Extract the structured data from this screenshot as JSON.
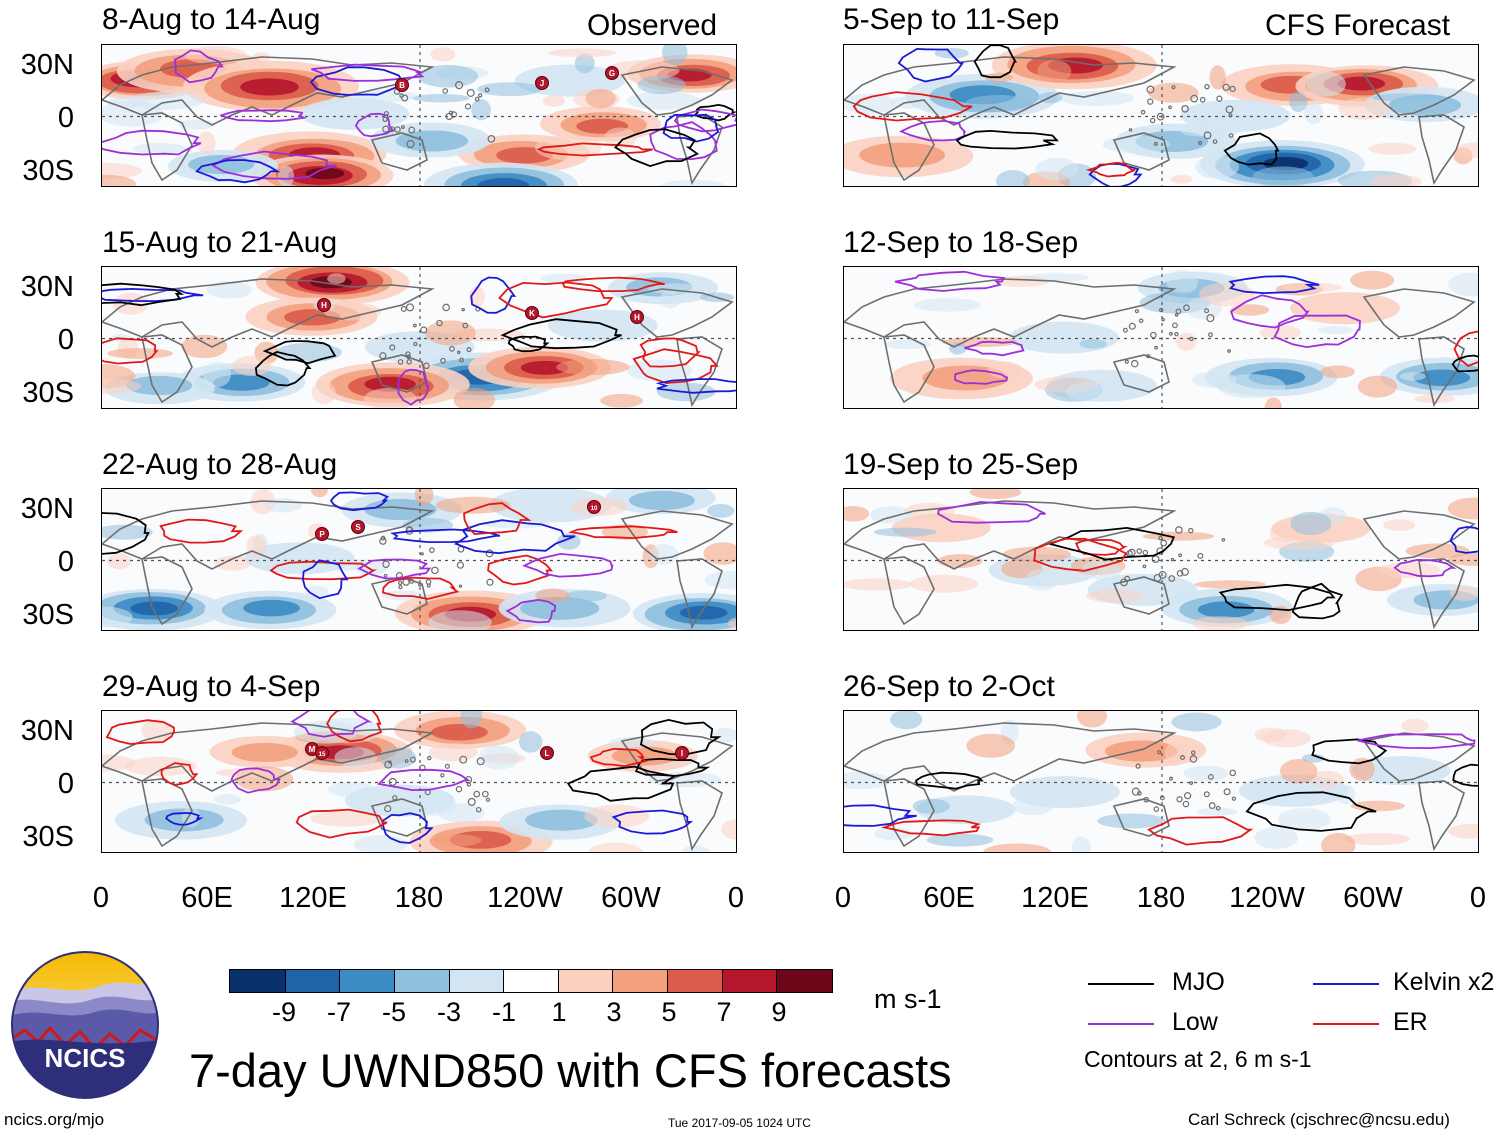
{
  "header": {
    "observed_label": "Observed",
    "forecast_label": "CFS Forecast"
  },
  "panels": [
    {
      "title": "8-Aug to 14-Aug"
    },
    {
      "title": "15-Aug to 21-Aug"
    },
    {
      "title": "22-Aug to 28-Aug"
    },
    {
      "title": "29-Aug to 4-Sep"
    },
    {
      "title": "5-Sep to 11-Sep"
    },
    {
      "title": "12-Sep to 18-Sep"
    },
    {
      "title": "19-Sep to 25-Sep"
    },
    {
      "title": "26-Sep to 2-Oct"
    }
  ],
  "axes": {
    "lat_labels": [
      "30N",
      "0",
      "30S"
    ],
    "lon_labels": [
      "0",
      "60E",
      "120E",
      "180",
      "120W",
      "60W",
      "0"
    ]
  },
  "colorbar": {
    "colors": [
      "#08306b",
      "#1f63a8",
      "#3c8bc3",
      "#8fc0de",
      "#d3e5f3",
      "#ffffff",
      "#fbd2c2",
      "#f2a07e",
      "#dc5b4a",
      "#b4162c",
      "#6b0718"
    ],
    "labels": [
      "-9",
      "-7",
      "-5",
      "-3",
      "-1",
      "1",
      "3",
      "5",
      "7",
      "9"
    ],
    "units": "m s-1"
  },
  "legend": {
    "items": [
      {
        "label": "MJO",
        "color": "#000000"
      },
      {
        "label": "Kelvin x2",
        "color": "#1a1ad6"
      },
      {
        "label": "Low",
        "color": "#9b30d9"
      },
      {
        "label": "ER",
        "color": "#e01818"
      }
    ],
    "contour_note": "Contours at 2, 6 m s-1"
  },
  "logo": {
    "text": "NCICS"
  },
  "main_title": "7-day UWND850 with CFS forecasts",
  "footer": {
    "url": "ncics.org/mjo",
    "timestamp": "Tue 2017-09-05 1024 UTC",
    "author": "Carl Schreck (cjschrec@ncsu.edu)"
  },
  "storms": [
    {
      "panel": 0,
      "label": "B"
    },
    {
      "panel": 0,
      "label": "J"
    },
    {
      "panel": 0,
      "label": "G"
    },
    {
      "panel": 1,
      "label": "H"
    },
    {
      "panel": 1,
      "label": "K"
    },
    {
      "panel": 1,
      "label": "H"
    },
    {
      "panel": 2,
      "label": "P"
    },
    {
      "panel": 2,
      "label": "S"
    },
    {
      "panel": 2,
      "label": "10"
    },
    {
      "panel": 3,
      "label": "M"
    },
    {
      "panel": 3,
      "label": "15"
    },
    {
      "panel": 3,
      "label": "L"
    },
    {
      "panel": 3,
      "label": "I"
    }
  ]
}
